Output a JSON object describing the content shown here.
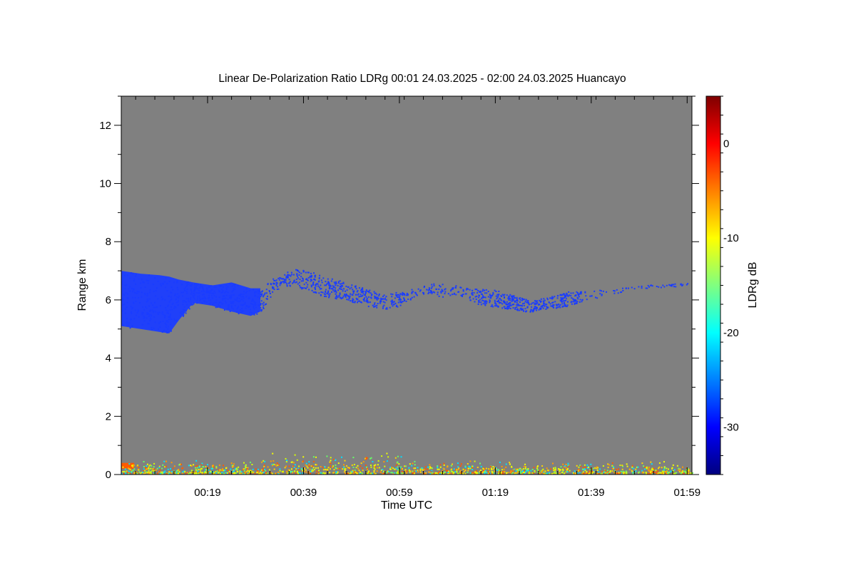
{
  "chart_data": {
    "type": "heatmap",
    "title": "Linear De-Polarization Ratio LDRg   00:01 24.03.2025 - 02:00 24.03.2025 Huancayo",
    "xlabel": "Time UTC",
    "ylabel": "Range km",
    "x_range_minutes": [
      1,
      120
    ],
    "x_ticks": [
      {
        "label": "00:19",
        "value": 19
      },
      {
        "label": "00:39",
        "value": 39
      },
      {
        "label": "00:59",
        "value": 59
      },
      {
        "label": "01:19",
        "value": 79
      },
      {
        "label": "01:39",
        "value": 99
      },
      {
        "label": "01:59",
        "value": 119
      }
    ],
    "ylim": [
      0,
      13
    ],
    "y_ticks": [
      0,
      2,
      4,
      6,
      8,
      10,
      12
    ],
    "colorbar": {
      "label": "LDRg dB",
      "range": [
        -35,
        5
      ],
      "ticks": [
        -30,
        -20,
        -10,
        0
      ]
    },
    "colors": {
      "background": "#808080",
      "cloud": "#1a3cff",
      "noise": [
        "#ffd400",
        "#ff9a00",
        "#f2ff00",
        "#ff5a00",
        "#66ff66",
        "#00e0ff",
        "#d8ff00"
      ]
    },
    "cloud_layer": [
      {
        "t": 1,
        "bottom": 5.1,
        "top": 7.0
      },
      {
        "t": 5,
        "bottom": 5.0,
        "top": 6.9
      },
      {
        "t": 9,
        "bottom": 4.9,
        "top": 6.85
      },
      {
        "t": 11,
        "bottom": 4.85,
        "top": 6.8
      },
      {
        "t": 13,
        "bottom": 5.3,
        "top": 6.7
      },
      {
        "t": 16,
        "bottom": 5.9,
        "top": 6.6
      },
      {
        "t": 20,
        "bottom": 5.8,
        "top": 6.5
      },
      {
        "t": 24,
        "bottom": 5.6,
        "top": 6.6
      },
      {
        "t": 28,
        "bottom": 5.45,
        "top": 6.4
      },
      {
        "t": 30,
        "bottom": 5.6,
        "top": 6.4
      },
      {
        "t": 33,
        "bottom": 6.3,
        "top": 6.8
      },
      {
        "t": 37,
        "bottom": 6.5,
        "top": 7.1
      },
      {
        "t": 40,
        "bottom": 6.3,
        "top": 7.0
      },
      {
        "t": 44,
        "bottom": 6.1,
        "top": 6.8
      },
      {
        "t": 48,
        "bottom": 6.0,
        "top": 6.6
      },
      {
        "t": 52,
        "bottom": 5.8,
        "top": 6.4
      },
      {
        "t": 56,
        "bottom": 5.7,
        "top": 6.2
      },
      {
        "t": 59,
        "bottom": 5.8,
        "top": 6.3
      },
      {
        "t": 63,
        "bottom": 6.2,
        "top": 6.5
      },
      {
        "t": 67,
        "bottom": 6.1,
        "top": 6.6
      },
      {
        "t": 71,
        "bottom": 6.2,
        "top": 6.5
      },
      {
        "t": 74,
        "bottom": 5.9,
        "top": 6.4
      },
      {
        "t": 78,
        "bottom": 5.8,
        "top": 6.4
      },
      {
        "t": 82,
        "bottom": 5.7,
        "top": 6.2
      },
      {
        "t": 86,
        "bottom": 5.6,
        "top": 6.0
      },
      {
        "t": 90,
        "bottom": 5.7,
        "top": 6.1
      },
      {
        "t": 94,
        "bottom": 5.8,
        "top": 6.3
      },
      {
        "t": 98,
        "bottom": 6.0,
        "top": 6.3
      },
      {
        "t": 108,
        "bottom": 6.4,
        "top": 6.5
      },
      {
        "t": 119,
        "bottom": 6.5,
        "top": 6.6
      }
    ],
    "noise_layer_km": [
      0.05,
      0.8
    ]
  }
}
